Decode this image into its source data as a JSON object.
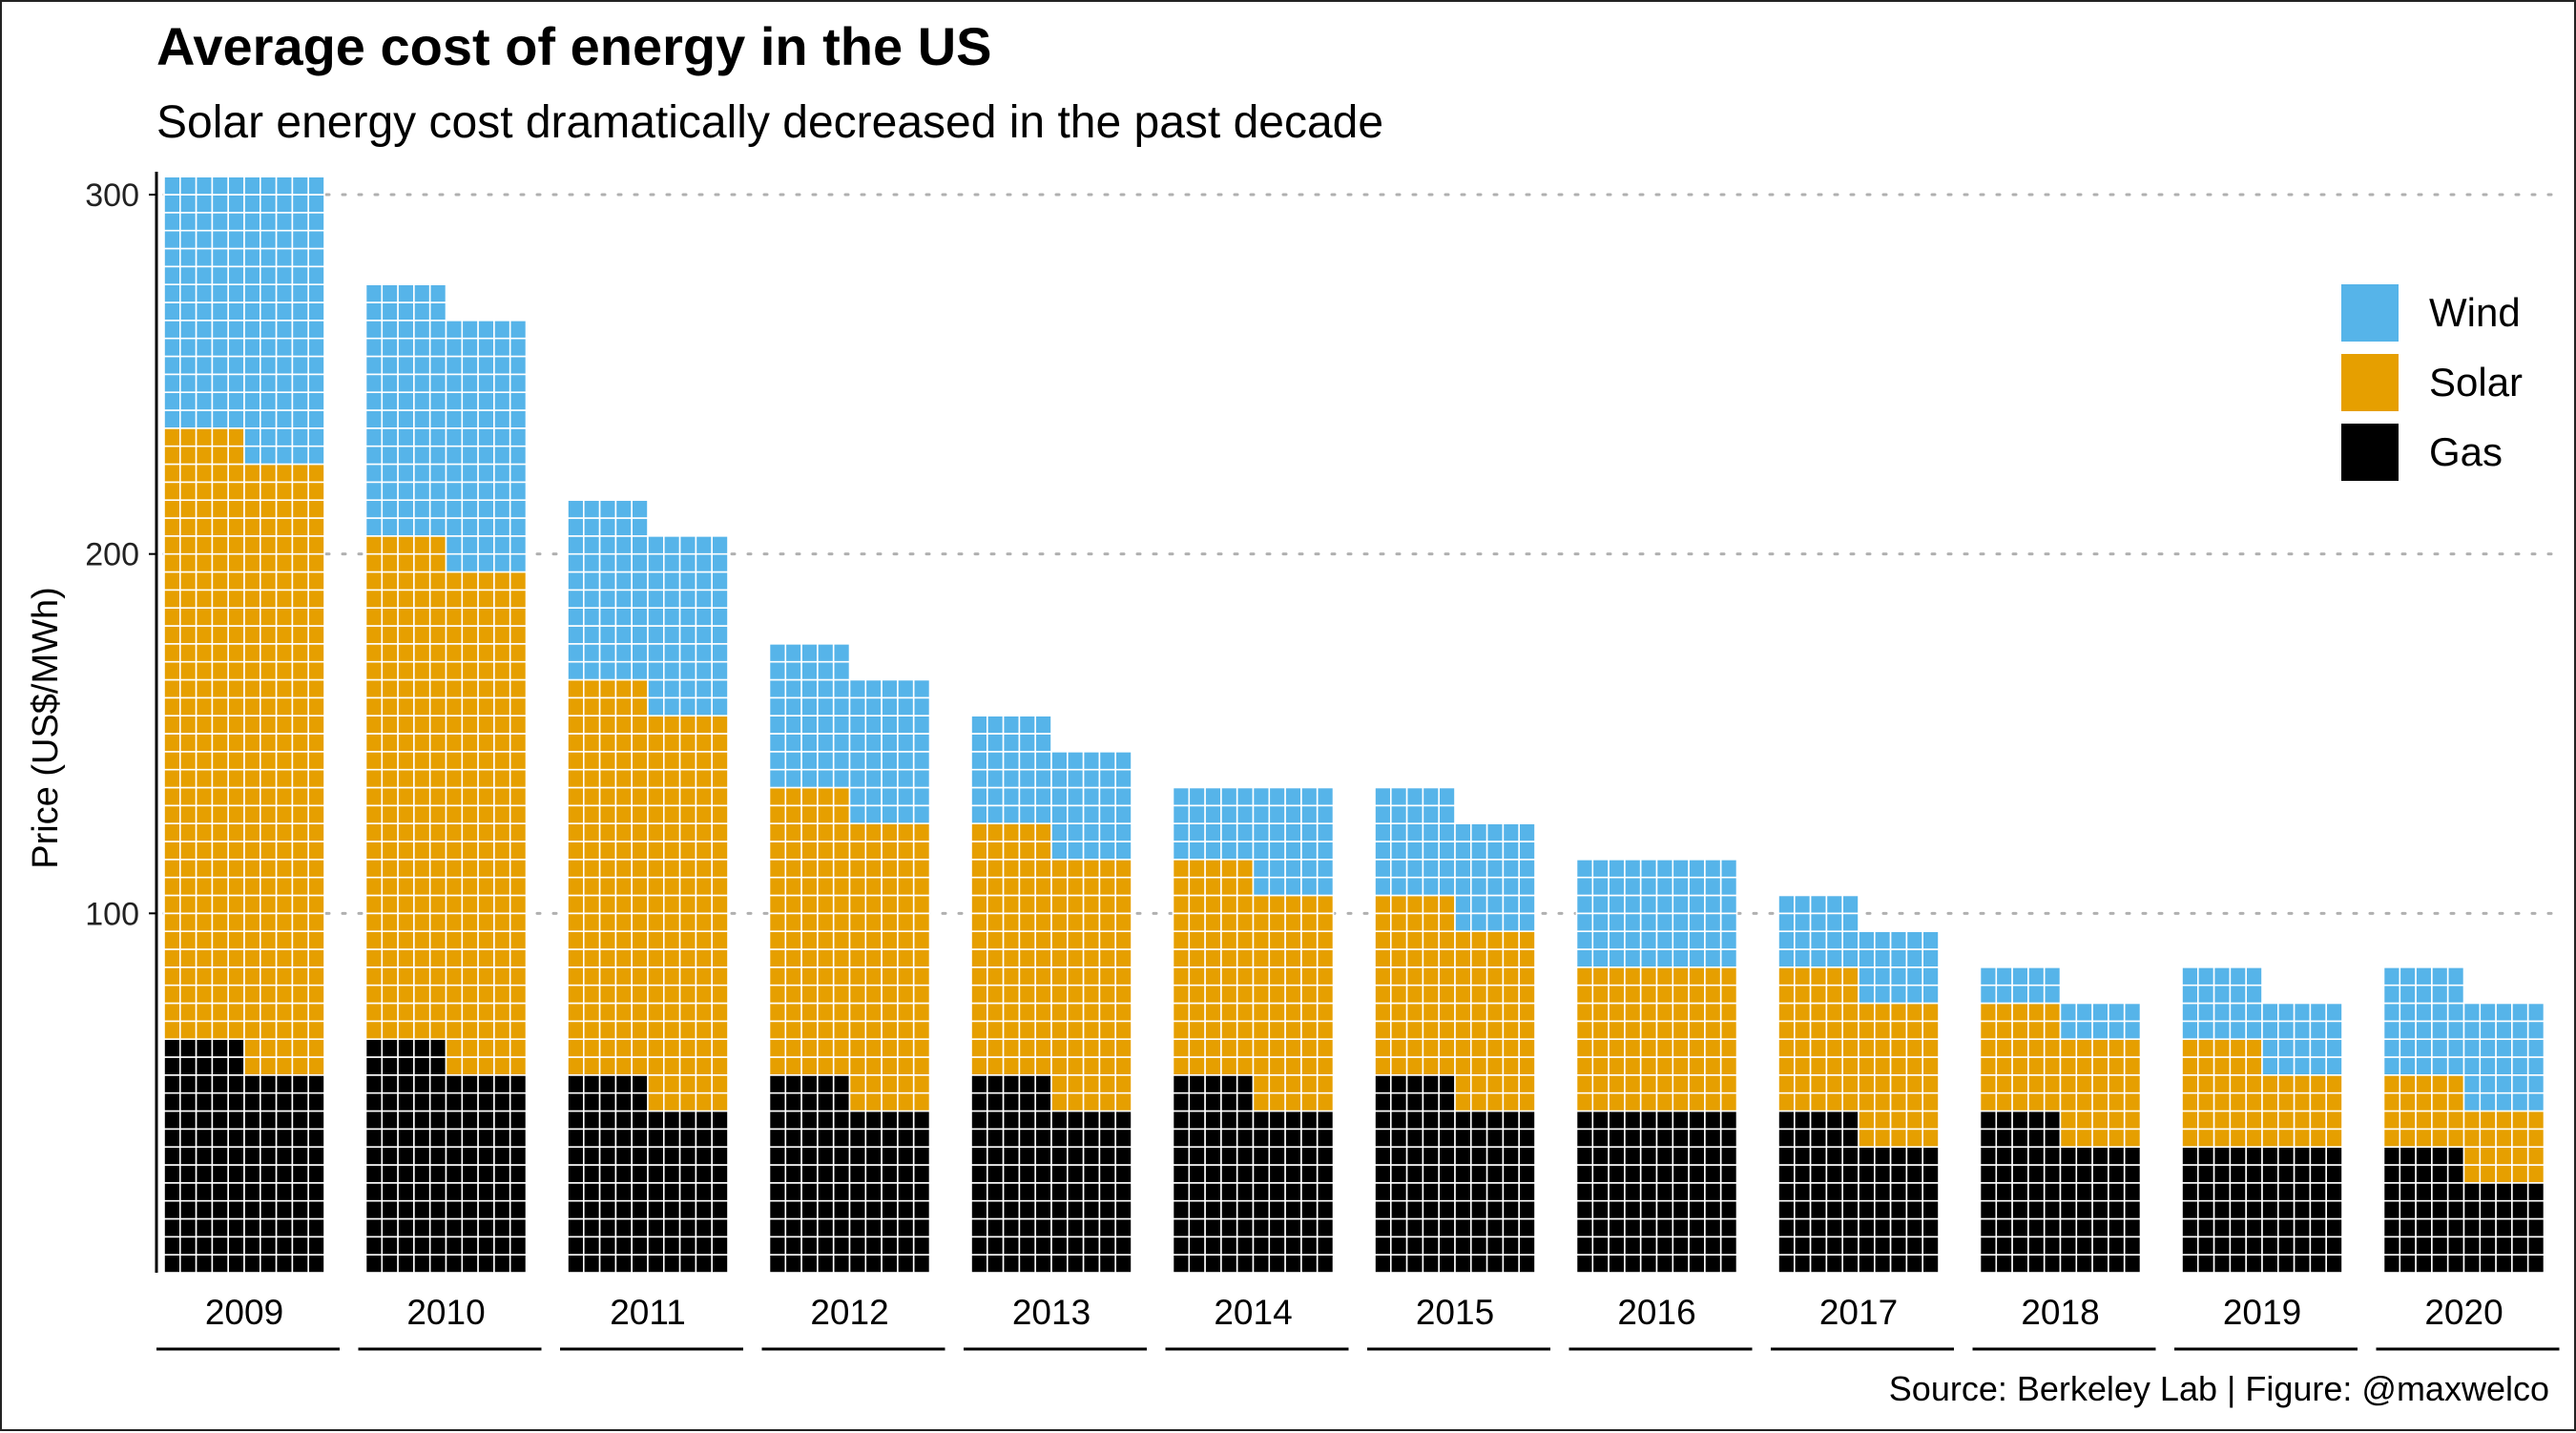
{
  "chart_data": {
    "type": "bar",
    "subtype": "waffle-grouped-stacked",
    "title": "Average cost of energy in the US",
    "subtitle": "Solar energy cost dramatically decreased in the past decade",
    "ylabel": "Price (US$/MWh)",
    "caption": "Source: Berkeley Lab | Figure: @maxwelco",
    "ylim": [
      0,
      300
    ],
    "y_ticks": [
      100,
      200,
      300
    ],
    "grid": "dotted-horizontal",
    "legend_position": "top-right",
    "cell_value": 5,
    "categories": [
      "2009",
      "2010",
      "2011",
      "2012",
      "2013",
      "2014",
      "2015",
      "2016",
      "2017",
      "2018",
      "2019",
      "2020"
    ],
    "stack_order": [
      "Gas",
      "Solar",
      "Wind"
    ],
    "series": [
      {
        "name": "Wind",
        "color": "#56B4E9",
        "values": [
          [
            70,
            80
          ],
          [
            70,
            70
          ],
          [
            50,
            50
          ],
          [
            40,
            40
          ],
          [
            30,
            30
          ],
          [
            20,
            30
          ],
          [
            30,
            30
          ],
          [
            30,
            30
          ],
          [
            20,
            20
          ],
          [
            10,
            10
          ],
          [
            20,
            20
          ],
          [
            30,
            30
          ]
        ]
      },
      {
        "name": "Solar",
        "color": "#E69F00",
        "values": [
          [
            170,
            170
          ],
          [
            140,
            140
          ],
          [
            110,
            110
          ],
          [
            80,
            80
          ],
          [
            70,
            70
          ],
          [
            60,
            60
          ],
          [
            50,
            50
          ],
          [
            40,
            40
          ],
          [
            40,
            40
          ],
          [
            30,
            30
          ],
          [
            30,
            20
          ],
          [
            20,
            20
          ]
        ]
      },
      {
        "name": "Gas",
        "color": "#000000",
        "values": [
          [
            65,
            55
          ],
          [
            65,
            55
          ],
          [
            55,
            45
          ],
          [
            55,
            45
          ],
          [
            55,
            45
          ],
          [
            55,
            45
          ],
          [
            55,
            45
          ],
          [
            45,
            45
          ],
          [
            45,
            35
          ],
          [
            45,
            35
          ],
          [
            35,
            35
          ],
          [
            35,
            25
          ]
        ]
      }
    ],
    "legend_order": [
      "Wind",
      "Solar",
      "Gas"
    ]
  }
}
